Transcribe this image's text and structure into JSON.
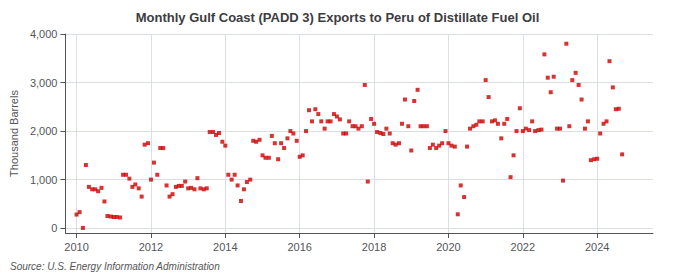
{
  "chart_data": {
    "type": "scatter",
    "title": "Monthly Gulf Coast (PADD 3) Exports to Peru of Distillate Fuel Oil",
    "ylabel": "Thousand Barrels",
    "annotations": [
      "Source: U.S. Energy Information Administration"
    ],
    "color": "#cc0000",
    "marker": "square",
    "grid": true,
    "xlim": [
      2009.7,
      2025.5
    ],
    "xticks": [
      2010,
      2012,
      2014,
      2016,
      2018,
      2020,
      2022,
      2024
    ],
    "ylim": [
      -100,
      4000
    ],
    "yticks": [
      0,
      {
        "value": 1000,
        "label": "1,000"
      },
      {
        "value": 2000,
        "label": "2,000"
      },
      {
        "value": 3000,
        "label": "3,000"
      },
      {
        "value": 4000,
        "label": "4,000"
      }
    ],
    "x": [
      2010.0,
      2010.08,
      2010.17,
      2010.25,
      2010.33,
      2010.42,
      2010.5,
      2010.58,
      2010.67,
      2010.75,
      2010.83,
      2010.92,
      2011.0,
      2011.08,
      2011.17,
      2011.25,
      2011.33,
      2011.42,
      2011.5,
      2011.58,
      2011.67,
      2011.75,
      2011.83,
      2011.92,
      2012.0,
      2012.08,
      2012.17,
      2012.25,
      2012.33,
      2012.42,
      2012.5,
      2012.58,
      2012.67,
      2012.75,
      2012.83,
      2012.92,
      2013.0,
      2013.08,
      2013.17,
      2013.25,
      2013.33,
      2013.42,
      2013.5,
      2013.58,
      2013.67,
      2013.75,
      2013.83,
      2013.92,
      2014.0,
      2014.08,
      2014.17,
      2014.25,
      2014.33,
      2014.42,
      2014.5,
      2014.58,
      2014.67,
      2014.75,
      2014.83,
      2014.92,
      2015.0,
      2015.08,
      2015.17,
      2015.25,
      2015.33,
      2015.42,
      2015.5,
      2015.58,
      2015.67,
      2015.75,
      2015.83,
      2015.92,
      2016.0,
      2016.08,
      2016.17,
      2016.25,
      2016.33,
      2016.42,
      2016.5,
      2016.58,
      2016.67,
      2016.75,
      2016.83,
      2016.92,
      2017.0,
      2017.08,
      2017.17,
      2017.25,
      2017.33,
      2017.42,
      2017.5,
      2017.58,
      2017.67,
      2017.75,
      2017.83,
      2017.92,
      2018.0,
      2018.08,
      2018.17,
      2018.25,
      2018.33,
      2018.42,
      2018.5,
      2018.58,
      2018.67,
      2018.75,
      2018.83,
      2018.92,
      2019.0,
      2019.08,
      2019.17,
      2019.25,
      2019.33,
      2019.42,
      2019.5,
      2019.58,
      2019.67,
      2019.75,
      2019.83,
      2019.92,
      2020.0,
      2020.08,
      2020.17,
      2020.25,
      2020.33,
      2020.42,
      2020.5,
      2020.58,
      2020.67,
      2020.75,
      2020.83,
      2020.92,
      2021.0,
      2021.08,
      2021.17,
      2021.25,
      2021.33,
      2021.42,
      2021.5,
      2021.58,
      2021.67,
      2021.75,
      2021.83,
      2021.92,
      2022.0,
      2022.08,
      2022.17,
      2022.25,
      2022.33,
      2022.42,
      2022.5,
      2022.58,
      2022.67,
      2022.75,
      2022.83,
      2022.92,
      2023.0,
      2023.08,
      2023.17,
      2023.25,
      2023.33,
      2023.42,
      2023.5,
      2023.58,
      2023.67,
      2023.75,
      2023.83,
      2023.92,
      2024.0,
      2024.08,
      2024.17,
      2024.25,
      2024.33,
      2024.42,
      2024.5,
      2024.58,
      2024.67
    ],
    "values": [
      280,
      330,
      5,
      1300,
      850,
      800,
      800,
      760,
      830,
      550,
      250,
      240,
      230,
      230,
      220,
      1100,
      1100,
      1020,
      850,
      900,
      820,
      650,
      1720,
      1750,
      1000,
      1350,
      1100,
      1650,
      1650,
      880,
      650,
      700,
      850,
      870,
      870,
      960,
      820,
      830,
      800,
      1030,
      820,
      800,
      820,
      1980,
      1980,
      1920,
      1960,
      1780,
      1700,
      1100,
      1000,
      1100,
      880,
      560,
      800,
      950,
      1000,
      1800,
      1780,
      1820,
      1500,
      1450,
      1450,
      1900,
      1750,
      1420,
      1750,
      1650,
      1850,
      2000,
      1950,
      1800,
      1470,
      1500,
      2000,
      2430,
      2200,
      2450,
      2350,
      2200,
      2050,
      2200,
      2200,
      2350,
      2300,
      2240,
      1950,
      1950,
      2200,
      2100,
      2100,
      2050,
      2100,
      2950,
      960,
      2250,
      2150,
      1980,
      1960,
      1940,
      2050,
      1950,
      1750,
      1720,
      1750,
      2150,
      2650,
      2100,
      1600,
      2620,
      2850,
      2100,
      2100,
      2100,
      1650,
      1720,
      1650,
      1700,
      1750,
      2000,
      1750,
      1700,
      1680,
      285,
      880,
      640,
      1680,
      2050,
      2100,
      2130,
      2200,
      2200,
      3050,
      2700,
      2200,
      2220,
      2150,
      1850,
      2150,
      2250,
      1050,
      1500,
      2000,
      2470,
      2000,
      2050,
      2020,
      2200,
      2000,
      2020,
      2030,
      3580,
      3100,
      2800,
      3120,
      2050,
      2050,
      980,
      3800,
      2100,
      3050,
      3200,
      2950,
      2650,
      2050,
      2200,
      1400,
      1420,
      1430,
      1950,
      2150,
      2200,
      3440,
      2900,
      2450,
      2460,
      1520
    ]
  }
}
